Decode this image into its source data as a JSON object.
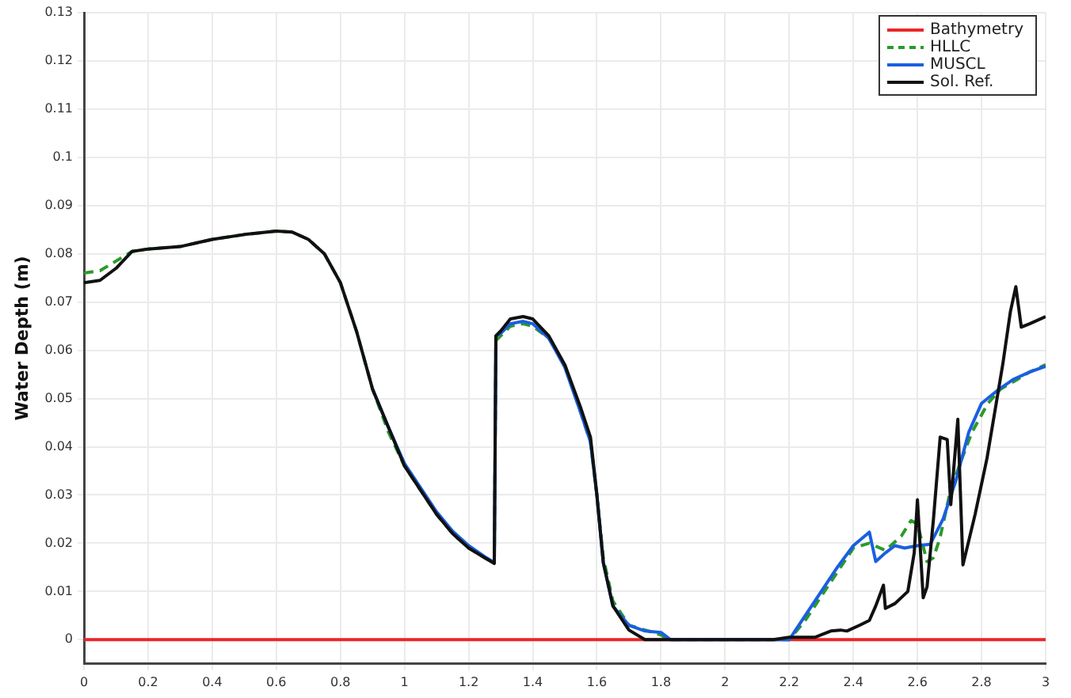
{
  "chart_data": {
    "type": "line",
    "ylabel": "Water Depth (m)",
    "xlim": [
      0,
      3
    ],
    "ylim": [
      -0.005,
      0.13
    ],
    "xticks": [
      0,
      0.2,
      0.4,
      0.6,
      0.8,
      1,
      1.2,
      1.4,
      1.6,
      1.8,
      2,
      2.2,
      2.4,
      2.6,
      2.8,
      3
    ],
    "yticks": [
      0,
      0.01,
      0.02,
      0.03,
      0.04,
      0.05,
      0.06,
      0.07,
      0.08,
      0.09,
      0.1,
      0.11,
      0.12,
      0.13
    ],
    "grid": true,
    "legend": "top right",
    "marker": "none",
    "series": [
      {
        "name": "Bathymetry",
        "color": "#e8272a",
        "line_style": "solid",
        "x": [
          0,
          3
        ],
        "values": [
          0,
          0
        ]
      },
      {
        "name": "HLLC",
        "color": "#2a9a2a",
        "line_style": "dashed",
        "x": [
          0,
          0.05,
          0.1,
          0.15,
          0.2,
          0.3,
          0.4,
          0.5,
          0.6,
          0.65,
          0.7,
          0.75,
          0.8,
          0.85,
          0.9,
          0.95,
          1,
          1.05,
          1.1,
          1.15,
          1.2,
          1.25,
          1.28,
          1.285,
          1.3,
          1.33,
          1.37,
          1.4,
          1.45,
          1.5,
          1.55,
          1.58,
          1.6,
          1.62,
          1.65,
          1.7,
          1.75,
          1.8,
          1.82,
          2.2,
          2.25,
          2.3,
          2.35,
          2.4,
          2.45,
          2.5,
          2.55,
          2.58,
          2.6,
          2.63,
          2.65,
          2.67,
          2.7,
          2.73,
          2.77,
          2.82,
          2.86,
          2.9,
          2.95,
          3
        ],
        "values": [
          0.076,
          0.0765,
          0.0785,
          0.0805,
          0.081,
          0.0815,
          0.083,
          0.084,
          0.0847,
          0.0845,
          0.083,
          0.08,
          0.074,
          0.064,
          0.052,
          0.043,
          0.036,
          0.031,
          0.026,
          0.022,
          0.019,
          0.017,
          0.0158,
          0.062,
          0.063,
          0.065,
          0.0655,
          0.065,
          0.0625,
          0.057,
          0.047,
          0.041,
          0.03,
          0.017,
          0.008,
          0.003,
          0.002,
          0.001,
          0,
          0,
          0.004,
          0.009,
          0.014,
          0.019,
          0.02,
          0.0185,
          0.0215,
          0.0247,
          0.024,
          0.0162,
          0.017,
          0.021,
          0.03,
          0.036,
          0.043,
          0.049,
          0.052,
          0.0535,
          0.0555,
          0.057
        ]
      },
      {
        "name": "MUSCL",
        "color": "#1a5fe0",
        "line_style": "solid",
        "x": [
          0.9,
          0.95,
          1,
          1.05,
          1.1,
          1.15,
          1.2,
          1.25,
          1.28,
          1.285,
          1.3,
          1.33,
          1.37,
          1.4,
          1.45,
          1.5,
          1.55,
          1.58,
          1.6,
          1.62,
          1.65,
          1.7,
          1.75,
          1.8,
          1.83,
          2.15,
          2.2,
          2.22,
          2.3,
          2.35,
          2.4,
          2.45,
          2.47,
          2.5,
          2.53,
          2.56,
          2.6,
          2.64,
          2.68,
          2.72,
          2.76,
          2.8,
          2.85,
          2.9,
          2.95,
          3
        ],
        "values": [
          0.052,
          0.044,
          0.0365,
          0.0315,
          0.0265,
          0.0225,
          0.0195,
          0.0172,
          0.016,
          0.063,
          0.0635,
          0.0655,
          0.066,
          0.0655,
          0.0625,
          0.0565,
          0.047,
          0.041,
          0.03,
          0.016,
          0.007,
          0.003,
          0.0018,
          0.0015,
          0,
          0,
          0,
          0.002,
          0.01,
          0.015,
          0.0195,
          0.0223,
          0.0162,
          0.018,
          0.0195,
          0.019,
          0.0195,
          0.0198,
          0.025,
          0.033,
          0.043,
          0.049,
          0.0517,
          0.054,
          0.0555,
          0.0567
        ]
      },
      {
        "name": "Sol. Ref.",
        "color": "#111111",
        "line_style": "solid",
        "x": [
          0,
          0.05,
          0.1,
          0.15,
          0.2,
          0.3,
          0.4,
          0.5,
          0.6,
          0.65,
          0.7,
          0.75,
          0.8,
          0.85,
          0.9,
          0.95,
          1,
          1.05,
          1.1,
          1.15,
          1.2,
          1.25,
          1.28,
          1.285,
          1.3,
          1.33,
          1.37,
          1.4,
          1.45,
          1.5,
          1.55,
          1.58,
          1.6,
          1.62,
          1.65,
          1.7,
          1.75,
          2.15,
          2.2,
          2.28,
          2.3,
          2.33,
          2.36,
          2.38,
          2.42,
          2.45,
          2.47,
          2.494,
          2.5,
          2.53,
          2.57,
          2.59,
          2.6,
          2.618,
          2.63,
          2.65,
          2.671,
          2.693,
          2.704,
          2.726,
          2.742,
          2.78,
          2.817,
          2.866,
          2.89,
          2.907,
          2.924,
          2.95,
          3
        ],
        "values": [
          0.074,
          0.0745,
          0.077,
          0.0805,
          0.081,
          0.0815,
          0.083,
          0.084,
          0.0847,
          0.0845,
          0.083,
          0.08,
          0.074,
          0.064,
          0.052,
          0.044,
          0.036,
          0.031,
          0.026,
          0.022,
          0.019,
          0.017,
          0.0158,
          0.063,
          0.064,
          0.0665,
          0.067,
          0.0665,
          0.063,
          0.057,
          0.048,
          0.042,
          0.03,
          0.016,
          0.007,
          0.002,
          0,
          0,
          0.0005,
          0.0005,
          0.001,
          0.0018,
          0.002,
          0.0018,
          0.003,
          0.004,
          0.007,
          0.0113,
          0.0065,
          0.0075,
          0.01,
          0.018,
          0.029,
          0.0087,
          0.011,
          0.025,
          0.042,
          0.0415,
          0.028,
          0.0457,
          0.0155,
          0.026,
          0.0376,
          0.057,
          0.068,
          0.0732,
          0.0648,
          0.0655,
          0.067
        ]
      }
    ]
  }
}
